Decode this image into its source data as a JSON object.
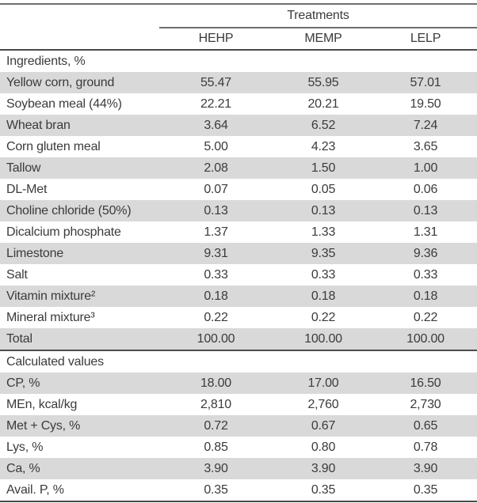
{
  "colors": {
    "stripe": "#d9d9d9",
    "text": "#3b3b3b",
    "rule_light": "#6e6e6e",
    "rule_dark": "#4a4a4a"
  },
  "table": {
    "group_header": "Treatments",
    "columns": [
      "HEHP",
      "MEMP",
      "LELP"
    ],
    "sections": [
      {
        "header": "Ingredients, %",
        "rows": [
          {
            "label": "Yellow corn, ground",
            "values": [
              "55.47",
              "55.95",
              "57.01"
            ]
          },
          {
            "label": "Soybean meal (44%)",
            "values": [
              "22.21",
              "20.21",
              "19.50"
            ]
          },
          {
            "label": "Wheat bran",
            "values": [
              "3.64",
              "6.52",
              "7.24"
            ]
          },
          {
            "label": "Corn gluten meal",
            "values": [
              "5.00",
              "4.23",
              "3.65"
            ]
          },
          {
            "label": "Tallow",
            "values": [
              "2.08",
              "1.50",
              "1.00"
            ]
          },
          {
            "label": "DL-Met",
            "values": [
              "0.07",
              "0.05",
              "0.06"
            ]
          },
          {
            "label": "Choline chloride (50%)",
            "values": [
              "0.13",
              "0.13",
              "0.13"
            ]
          },
          {
            "label": "Dicalcium phosphate",
            "values": [
              "1.37",
              "1.33",
              "1.31"
            ]
          },
          {
            "label": "Limestone",
            "values": [
              "9.31",
              "9.35",
              "9.36"
            ]
          },
          {
            "label": "Salt",
            "values": [
              "0.33",
              "0.33",
              "0.33"
            ]
          },
          {
            "label": "Vitamin mixture²",
            "values": [
              "0.18",
              "0.18",
              "0.18"
            ]
          },
          {
            "label": "Mineral mixture³",
            "values": [
              "0.22",
              "0.22",
              "0.22"
            ]
          },
          {
            "label": "Total",
            "values": [
              "100.00",
              "100.00",
              "100.00"
            ]
          }
        ]
      },
      {
        "header": "Calculated values",
        "rows": [
          {
            "label": "CP, %",
            "values": [
              "18.00",
              "17.00",
              "16.50"
            ]
          },
          {
            "label": "MEn, kcal/kg",
            "values": [
              "2,810",
              "2,760",
              "2,730"
            ]
          },
          {
            "label": "Met + Cys, %",
            "values": [
              "0.72",
              "0.67",
              "0.65"
            ]
          },
          {
            "label": "Lys, %",
            "values": [
              "0.85",
              "0.80",
              "0.78"
            ]
          },
          {
            "label": "Ca, %",
            "values": [
              "3.90",
              "3.90",
              "3.90"
            ]
          },
          {
            "label": "Avail. P, %",
            "values": [
              "0.35",
              "0.35",
              "0.35"
            ]
          }
        ]
      }
    ]
  }
}
